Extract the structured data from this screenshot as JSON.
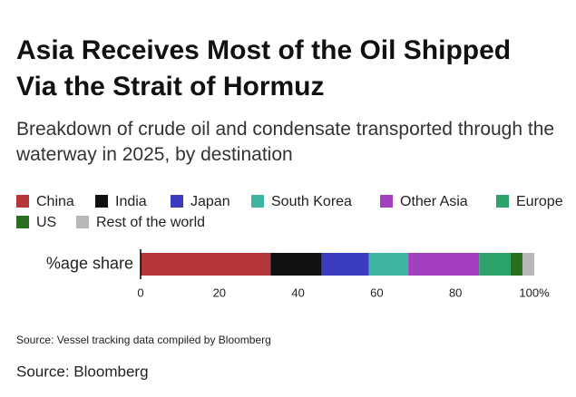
{
  "chart_data": {
    "type": "stacked-bar-horizontal",
    "title": "Asia Receives Most of the Oil Shipped Via the Strait of Hormuz",
    "subtitle": "Breakdown of crude oil and condensate transported through the waterway in 2025, by destination",
    "categories": [
      "%age share"
    ],
    "series": [
      {
        "name": "China",
        "color": "#b5373a",
        "values": [
          33
        ]
      },
      {
        "name": "India",
        "color": "#111111",
        "values": [
          13
        ]
      },
      {
        "name": "Japan",
        "color": "#3a3bbf",
        "values": [
          12
        ]
      },
      {
        "name": "South Korea",
        "color": "#3db5a0",
        "values": [
          10
        ]
      },
      {
        "name": "Other Asia",
        "color": "#a43fbf",
        "values": [
          18
        ]
      },
      {
        "name": "Europe",
        "color": "#2ca36a",
        "values": [
          8
        ]
      },
      {
        "name": "US",
        "color": "#2a6e1f",
        "values": [
          3
        ]
      },
      {
        "name": "Rest of the world",
        "color": "#b8b8b8",
        "values": [
          3
        ]
      }
    ],
    "xlim": [
      0,
      100
    ],
    "xticks": [
      0,
      20,
      40,
      60,
      80,
      {
        "value": 100,
        "label": "100%"
      }
    ],
    "note": "Source: Vessel tracking data compiled by Bloomberg",
    "source": "Source: Bloomberg"
  }
}
